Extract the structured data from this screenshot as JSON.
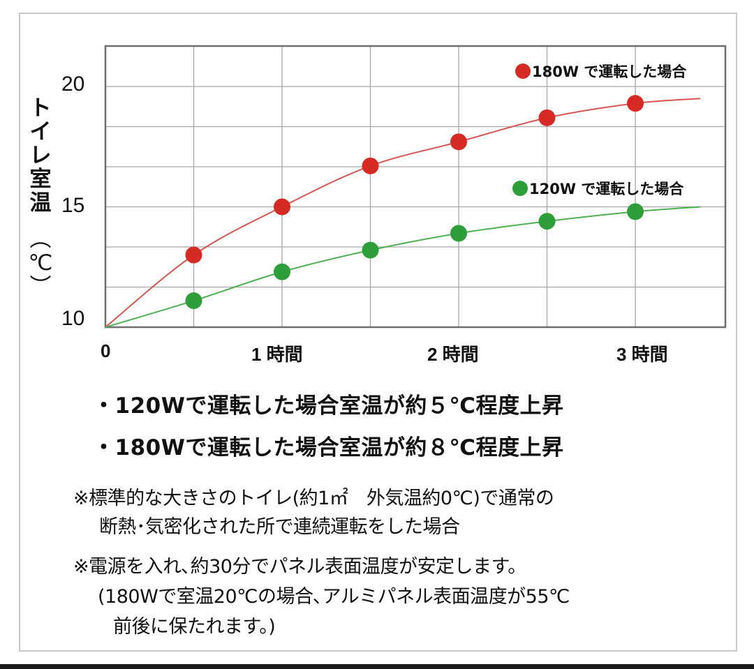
{
  "chart_data": {
    "type": "line",
    "title": "",
    "xlabel": "",
    "ylabel": "トイレ室温（℃）",
    "ylim": [
      10,
      20
    ],
    "xlim": [
      0,
      3.4
    ],
    "grid": true,
    "legend_position": "upper-right (inline)",
    "x_ticks": [
      {
        "value": 0,
        "label": "0"
      },
      {
        "value": 1,
        "label": "1 時間"
      },
      {
        "value": 2,
        "label": "2 時間"
      },
      {
        "value": 3,
        "label": "3 時間"
      }
    ],
    "y_ticks": [
      {
        "value": 20,
        "label": "20"
      },
      {
        "value": 15,
        "label": "15"
      },
      {
        "value": 10,
        "label": "10"
      }
    ],
    "x": [
      0,
      0.5,
      1,
      1.5,
      2,
      2.5,
      3
    ],
    "series": [
      {
        "name": "180W で運転した場合",
        "color": "#d62a24",
        "line_color": "#d9534f",
        "values": [
          10.0,
          13.0,
          15.0,
          16.7,
          17.7,
          18.7,
          19.3
        ],
        "curve_end": {
          "x": 3.4,
          "y": 19.5
        }
      },
      {
        "name": "120W で運転した場合",
        "color": "#2e9e3a",
        "line_color": "#4caf50",
        "values": [
          10.0,
          11.1,
          12.3,
          13.2,
          13.9,
          14.4,
          14.8
        ],
        "curve_end": {
          "x": 3.4,
          "y": 15.0
        }
      }
    ]
  },
  "axis": {
    "ylabel_chars": [
      "ト",
      "イ",
      "レ",
      "室",
      "温",
      "︵",
      "℃",
      "︶"
    ],
    "y_ticks": [
      "20",
      "15",
      "10"
    ],
    "x_ticks": [
      "0",
      "1 時間",
      "2 時間",
      "3 時間"
    ]
  },
  "legend": {
    "red_label": "180W で運転した場合",
    "green_label": "120W で運転した場合"
  },
  "summary": {
    "line1": "・120Wで運転した場合室温が約５℃程度上昇",
    "line2": "・180Wで運転した場合室温が約８℃程度上昇"
  },
  "notes": {
    "note1_line1": "※標準的な大きさのトイレ(約1㎡　外気温約0℃)で通常の",
    "note1_line2": "断熱･気密化された所で連続運転をした場合",
    "note2_line1": "※電源を入れ､約30分でパネル表面温度が安定します。",
    "note2_line2": "(180Wで室温20℃の場合､アルミパネル表面温度が55℃",
    "note2_line3": "前後に保たれます。)"
  },
  "colors": {
    "red": "#d62a24",
    "green": "#2e9e3a",
    "grid": "#9a9a9a",
    "frame": "#6e6e6e"
  }
}
